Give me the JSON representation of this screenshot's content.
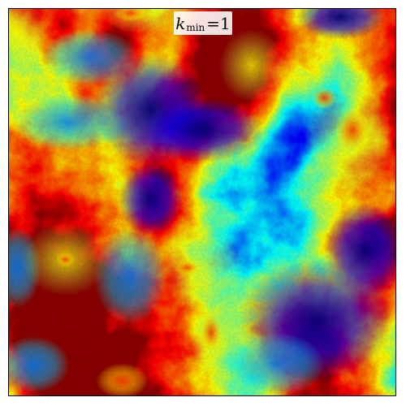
{
  "figure": {
    "label": {
      "symbol": "k",
      "subscript": "min",
      "relation": "=",
      "value": "1"
    },
    "colormap": "jet",
    "colormap_stops": [
      "#00007f",
      "#0000ff",
      "#007fff",
      "#00ffff",
      "#7fff7f",
      "#ffff00",
      "#ff7f00",
      "#ff0000"
    ]
  }
}
